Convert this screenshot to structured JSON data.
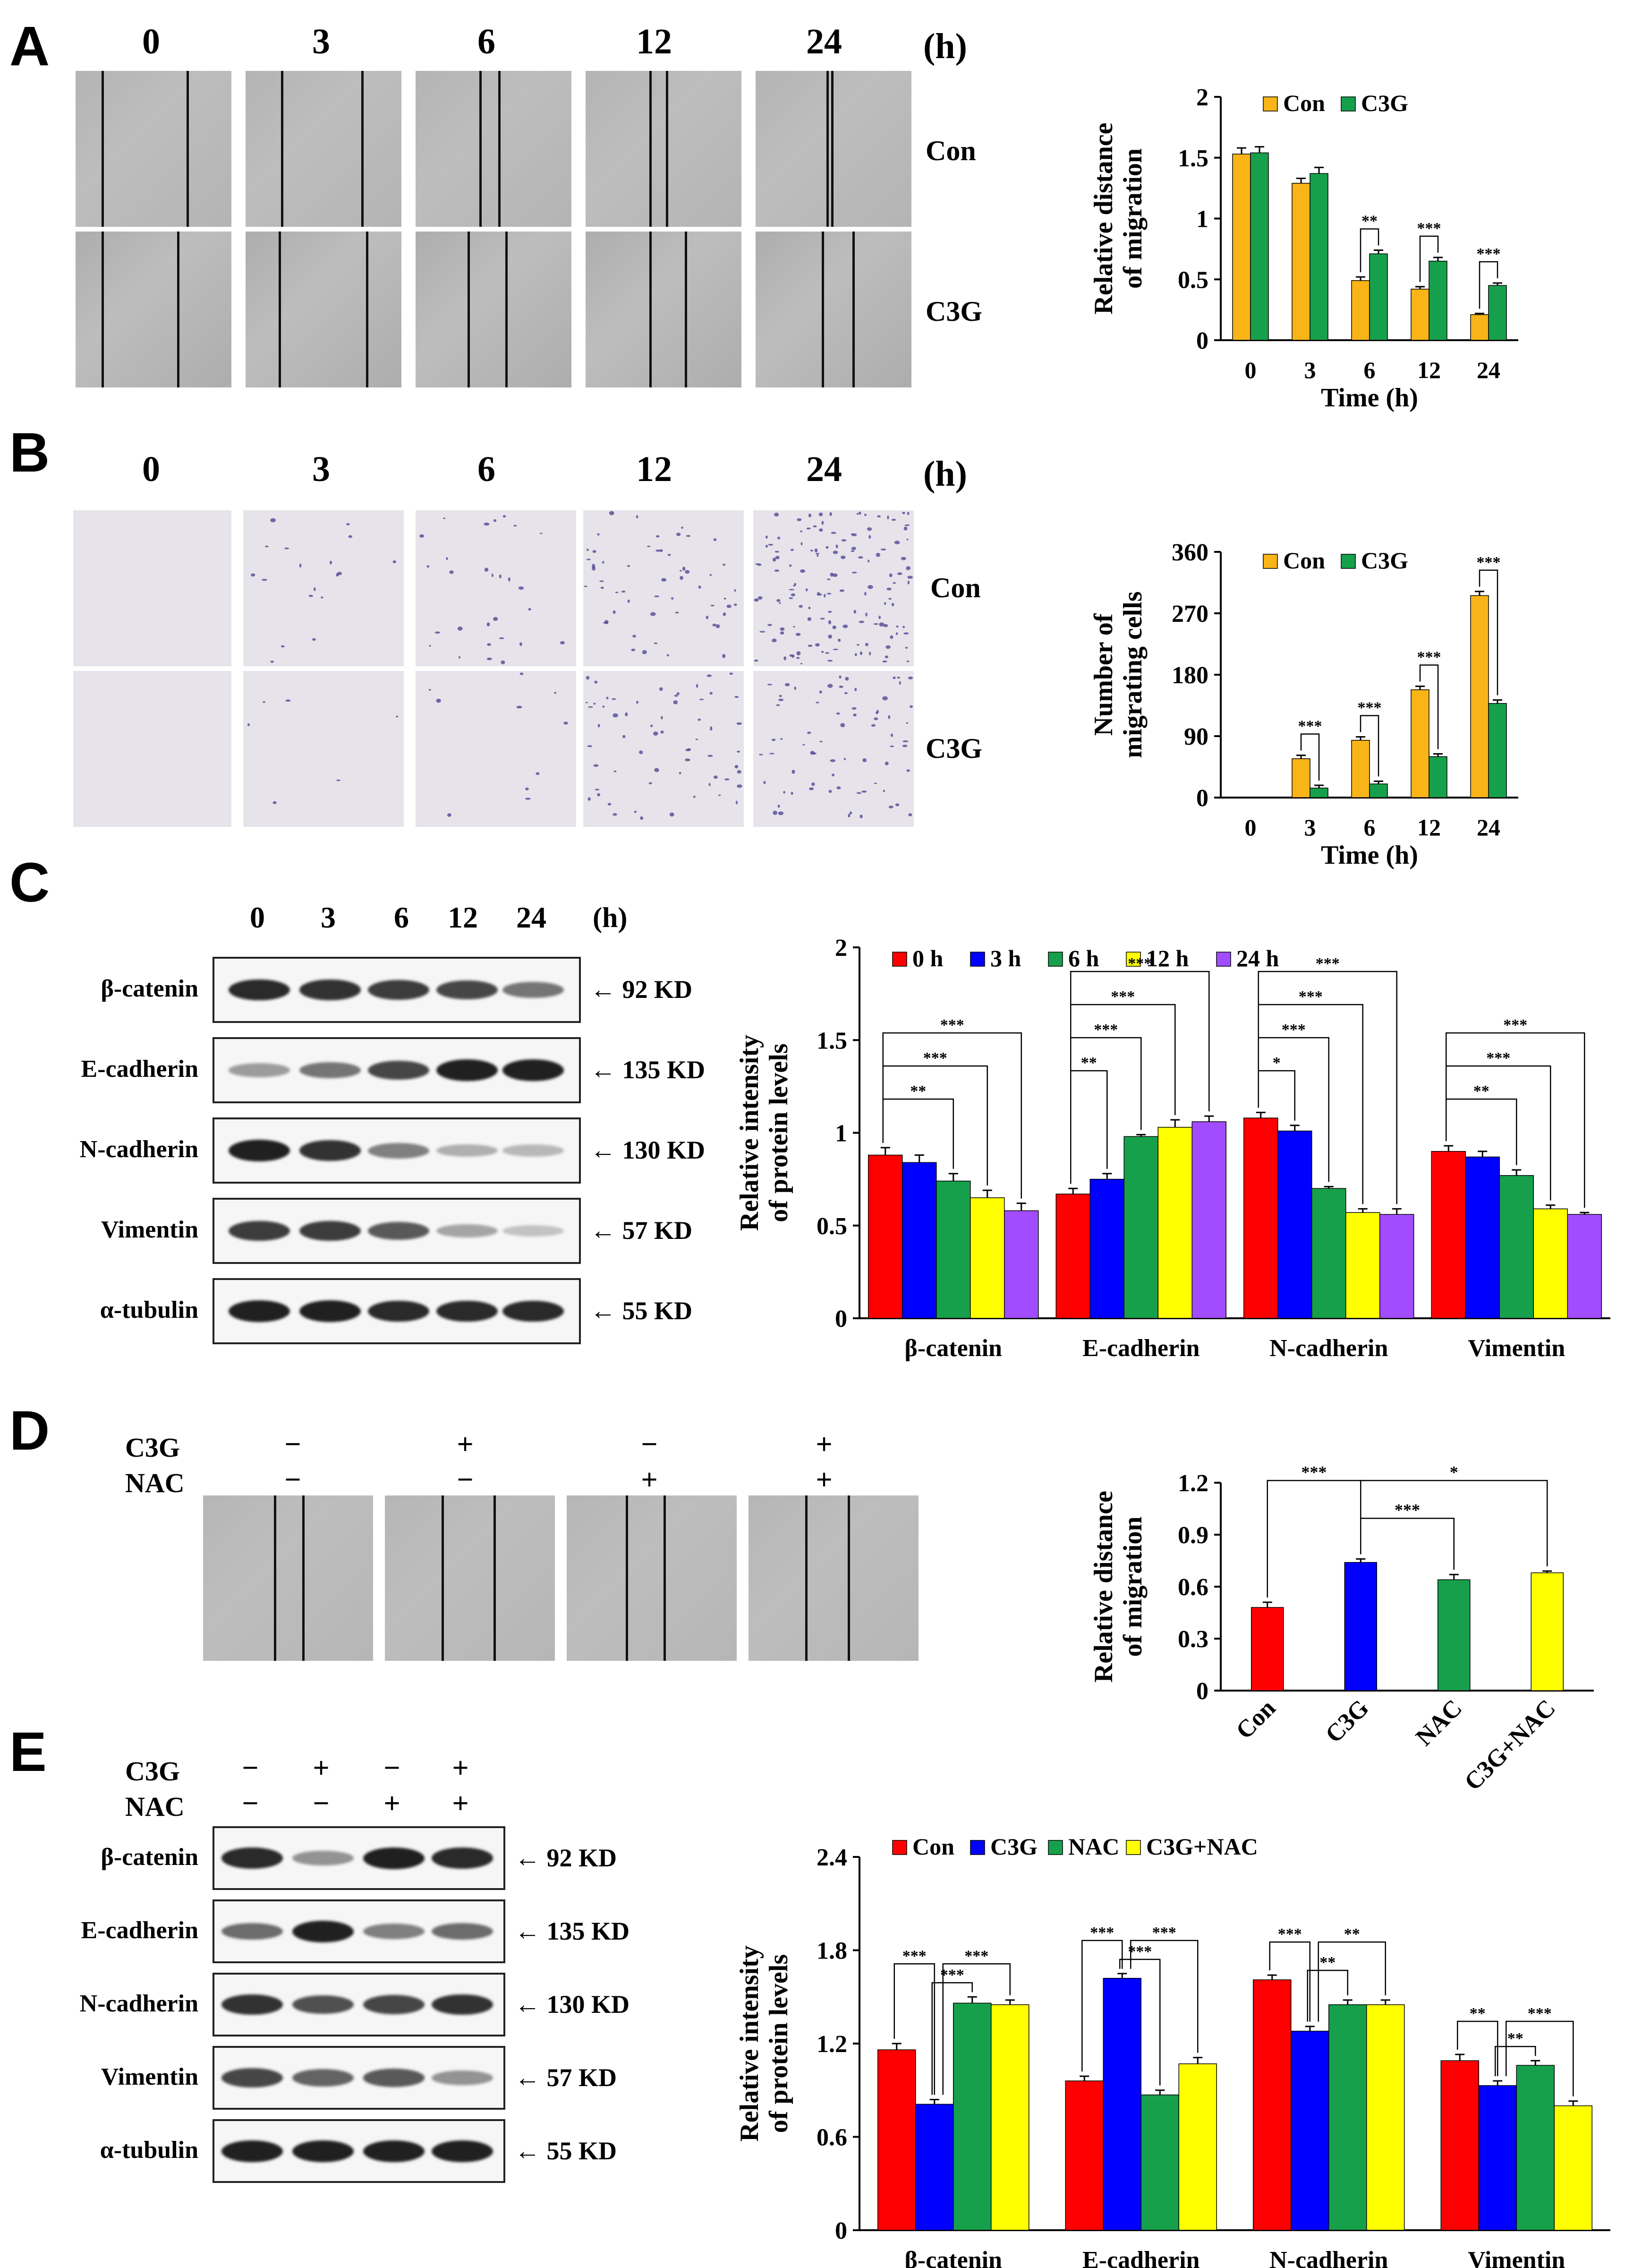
{
  "colors": {
    "orange": "#f9b418",
    "green": "#16a04b",
    "red": "#ff0000",
    "blue": "#0000ff",
    "yellow": "#ffff00",
    "purple": "#a24cff",
    "scratch": "#b7b7b7",
    "transwell": "#e6e4ea",
    "stain": "#4b3d8f"
  },
  "panelA": {
    "letter": "A",
    "times": [
      "0",
      "3",
      "6",
      "12",
      "24"
    ],
    "unit": "(h)",
    "rows": [
      "Con",
      "C3G"
    ],
    "icon": "wound-healing-micrograph"
  },
  "panelB": {
    "letter": "B",
    "times": [
      "0",
      "3",
      "6",
      "12",
      "24"
    ],
    "unit": "(h)",
    "rows": [
      "Con",
      "C3G"
    ],
    "icon": "transwell-micrograph"
  },
  "panelC": {
    "letter": "C",
    "times": [
      "0",
      "3",
      "6",
      "12",
      "24"
    ],
    "unit": "(h)",
    "proteins": [
      "β-catenin",
      "E-cadherin",
      "N-cadherin",
      "Vimentin",
      "α-tubulin"
    ],
    "kd": [
      "92 KD",
      "135 KD",
      "130 KD",
      "57 KD",
      "55 KD"
    ],
    "arrow": "←"
  },
  "panelD": {
    "letter": "D",
    "row_labels": [
      "C3G",
      "NAC"
    ],
    "c3g_signs": [
      "−",
      "+",
      "−",
      "+"
    ],
    "nac_signs": [
      "−",
      "−",
      "+",
      "+"
    ]
  },
  "panelE": {
    "letter": "E",
    "row_labels": [
      "C3G",
      "NAC"
    ],
    "c3g_signs": [
      "−",
      "+",
      "−",
      "+"
    ],
    "nac_signs": [
      "−",
      "−",
      "+",
      "+"
    ],
    "proteins": [
      "β-catenin",
      "E-cadherin",
      "N-cadherin",
      "Vimentin",
      "α-tubulin"
    ],
    "kd": [
      "92 KD",
      "135 KD",
      "130 KD",
      "57 KD",
      "55 KD"
    ],
    "arrow": "←"
  },
  "chart_data": [
    {
      "id": "A",
      "type": "bar",
      "ylabel_lines": [
        "Relative distance",
        "of migration"
      ],
      "xlabel": "Time (h)",
      "categories": [
        "0",
        "3",
        "6",
        "12",
        "24"
      ],
      "ylim": [
        0,
        2
      ],
      "yticks": [
        0,
        0.5,
        1,
        1.5,
        2
      ],
      "ytick_labels": [
        "0",
        "0.5",
        "1",
        "1.5",
        "2"
      ],
      "series": [
        {
          "name": "Con",
          "color": "#f9b418",
          "values": [
            1.53,
            1.29,
            0.49,
            0.42,
            0.21
          ],
          "errors": [
            0.05,
            0.04,
            0.03,
            0.02,
            0.01
          ]
        },
        {
          "name": "C3G",
          "color": "#16a04b",
          "values": [
            1.54,
            1.37,
            0.71,
            0.65,
            0.45
          ],
          "errors": [
            0.05,
            0.05,
            0.03,
            0.03,
            0.02
          ]
        }
      ],
      "significance": [
        {
          "category": 2,
          "label": "**"
        },
        {
          "category": 3,
          "label": "***"
        },
        {
          "category": 4,
          "label": "***"
        }
      ],
      "grid": false,
      "legend": "top"
    },
    {
      "id": "B",
      "type": "bar",
      "ylabel_lines": [
        "Number of",
        "migrating cells"
      ],
      "xlabel": "Time (h)",
      "categories": [
        "0",
        "3",
        "6",
        "12",
        "24"
      ],
      "ylim": [
        0,
        360
      ],
      "yticks": [
        0,
        90,
        180,
        270,
        360
      ],
      "ytick_labels": [
        "0",
        "90",
        "180",
        "270",
        "360"
      ],
      "series": [
        {
          "name": "Con",
          "color": "#f9b418",
          "values": [
            0,
            57,
            84,
            158,
            296
          ],
          "errors": [
            0,
            5,
            5,
            5,
            6
          ]
        },
        {
          "name": "C3G",
          "color": "#16a04b",
          "values": [
            0,
            14,
            20,
            60,
            138
          ],
          "errors": [
            0,
            4,
            4,
            4,
            5
          ]
        }
      ],
      "significance": [
        {
          "category": 1,
          "label": "***"
        },
        {
          "category": 2,
          "label": "***"
        },
        {
          "category": 3,
          "label": "***"
        },
        {
          "category": 4,
          "label": "***"
        }
      ],
      "grid": false,
      "legend": "top"
    },
    {
      "id": "C",
      "type": "bar",
      "ylabel_lines": [
        "Relative intensity",
        "of protein levels"
      ],
      "xlabel": "",
      "categories": [
        "β-catenin",
        "E-cadherin",
        "N-cadherin",
        "Vimentin"
      ],
      "ylim": [
        0,
        2
      ],
      "yticks": [
        0,
        0.5,
        1,
        1.5,
        2
      ],
      "ytick_labels": [
        "0",
        "0.5",
        "1",
        "1.5",
        "2"
      ],
      "series": [
        {
          "name": "0 h",
          "color": "#ff0000",
          "values": [
            0.88,
            0.67,
            1.08,
            0.9
          ],
          "errors": [
            0.04,
            0.03,
            0.03,
            0.03
          ]
        },
        {
          "name": "3 h",
          "color": "#0000ff",
          "values": [
            0.84,
            0.75,
            1.01,
            0.87
          ],
          "errors": [
            0.04,
            0.03,
            0.03,
            0.03
          ]
        },
        {
          "name": "6 h",
          "color": "#16a04b",
          "values": [
            0.74,
            0.98,
            0.7,
            0.77
          ],
          "errors": [
            0.04,
            0.01,
            0.01,
            0.03
          ]
        },
        {
          "name": "12 h",
          "color": "#ffff00",
          "values": [
            0.65,
            1.03,
            0.57,
            0.59
          ],
          "errors": [
            0.04,
            0.04,
            0.02,
            0.02
          ]
        },
        {
          "name": "24 h",
          "color": "#a24cff",
          "values": [
            0.58,
            1.06,
            0.56,
            0.56
          ],
          "errors": [
            0.04,
            0.03,
            0.03,
            0.01
          ]
        }
      ],
      "significance_groups": [
        {
          "category": 0,
          "labels": [
            "**",
            "***",
            "***"
          ]
        },
        {
          "category": 1,
          "labels": [
            "**",
            "***",
            "***",
            "***"
          ]
        },
        {
          "category": 2,
          "labels": [
            "*",
            "***",
            "***",
            "***"
          ]
        },
        {
          "category": 3,
          "labels": [
            "**",
            "***",
            "***"
          ]
        }
      ],
      "grid": false,
      "legend": "top"
    },
    {
      "id": "D",
      "type": "bar",
      "ylabel_lines": [
        "Relative distance",
        "of migration"
      ],
      "xlabel": "",
      "categories": [
        "Con",
        "C3G",
        "NAC",
        "C3G+NAC"
      ],
      "category_colors": [
        "#ff0000",
        "#0000ff",
        "#16a04b",
        "#ffff00"
      ],
      "ylim": [
        0,
        1.2
      ],
      "yticks": [
        0,
        0.3,
        0.6,
        0.9,
        1.2
      ],
      "ytick_labels": [
        "0",
        "0.3",
        "0.6",
        "0.9",
        "1.2"
      ],
      "values": [
        0.48,
        0.74,
        0.64,
        0.68
      ],
      "errors": [
        0.03,
        0.02,
        0.03,
        0.01
      ],
      "significance": [
        {
          "from": 0,
          "to": 1,
          "label": "***"
        },
        {
          "from": 1,
          "to": 3,
          "label": "*"
        },
        {
          "from": 1,
          "to": 2,
          "label": "***"
        }
      ],
      "grid": false
    },
    {
      "id": "E",
      "type": "bar",
      "ylabel_lines": [
        "Relative intensity",
        "of protein levels"
      ],
      "xlabel": "",
      "categories": [
        "β-catenin",
        "E-cadherin",
        "N-cadherin",
        "Vimentin"
      ],
      "ylim": [
        0,
        2.4
      ],
      "yticks": [
        0,
        0.6,
        1.2,
        1.8,
        2.4
      ],
      "ytick_labels": [
        "0",
        "0.6",
        "1.2",
        "1.8",
        "2.4"
      ],
      "series": [
        {
          "name": "Con",
          "color": "#ff0000",
          "values": [
            1.16,
            0.96,
            1.61,
            1.09
          ],
          "errors": [
            0.04,
            0.03,
            0.03,
            0.04
          ]
        },
        {
          "name": "C3G",
          "color": "#0000ff",
          "values": [
            0.81,
            1.62,
            1.28,
            0.93
          ],
          "errors": [
            0.03,
            0.03,
            0.03,
            0.03
          ]
        },
        {
          "name": "NAC",
          "color": "#16a04b",
          "values": [
            1.46,
            0.87,
            1.45,
            1.06
          ],
          "errors": [
            0.04,
            0.03,
            0.03,
            0.03
          ]
        },
        {
          "name": "C3G+NAC",
          "color": "#ffff00",
          "values": [
            1.45,
            1.07,
            1.45,
            0.8
          ],
          "errors": [
            0.03,
            0.04,
            0.03,
            0.03
          ]
        }
      ],
      "significance_groups": [
        {
          "category": 0,
          "pairs": [
            [
              0,
              1,
              "***"
            ],
            [
              1,
              3,
              "***"
            ],
            [
              1,
              2,
              "***"
            ]
          ]
        },
        {
          "category": 1,
          "pairs": [
            [
              0,
              1,
              "***"
            ],
            [
              1,
              3,
              "***"
            ],
            [
              1,
              2,
              "***"
            ]
          ]
        },
        {
          "category": 2,
          "pairs": [
            [
              0,
              1,
              "***"
            ],
            [
              1,
              3,
              "**"
            ],
            [
              1,
              2,
              "**"
            ]
          ]
        },
        {
          "category": 3,
          "pairs": [
            [
              0,
              1,
              "**"
            ],
            [
              1,
              3,
              "***"
            ],
            [
              1,
              2,
              "**"
            ]
          ]
        }
      ],
      "grid": false,
      "legend": "top"
    }
  ]
}
